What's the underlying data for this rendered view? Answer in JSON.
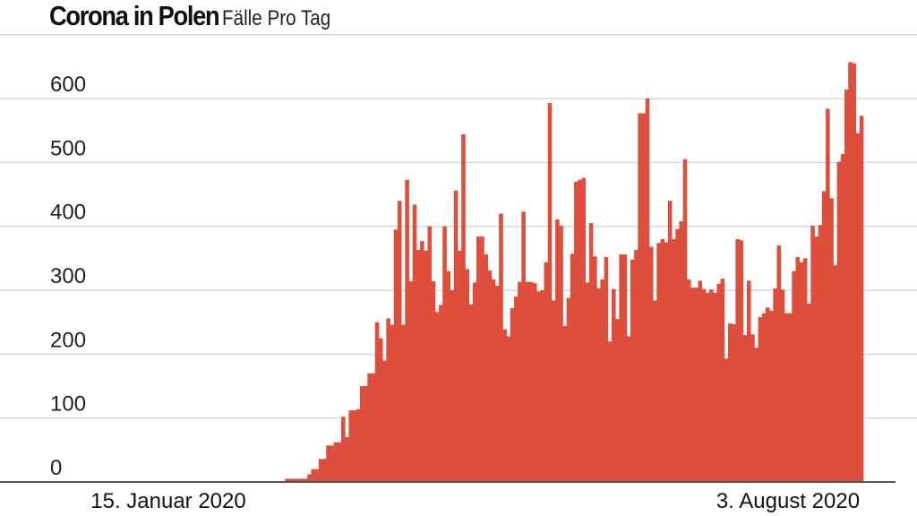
{
  "header": {
    "title": "Corona in Polen",
    "subtitle": "Fälle Pro Tag"
  },
  "colors": {
    "bar": "#dd4e3c",
    "grid": "#d9d9d9",
    "axis": "#555555"
  },
  "chart_data": {
    "type": "bar",
    "title": "Corona in Polen",
    "subtitle": "Fälle Pro Tag",
    "x_tick_labels": [
      "15. Januar 2020",
      "3. August 2020"
    ],
    "y_ticks": [
      0,
      100,
      200,
      300,
      400,
      500,
      600
    ],
    "ylim": [
      0,
      700
    ],
    "grid": true,
    "legend": false,
    "series": [
      {
        "values": [
          0,
          0,
          0,
          0,
          0,
          0,
          0,
          0,
          0,
          0,
          0,
          0,
          0,
          0,
          0,
          0,
          0,
          0,
          0,
          0,
          0,
          0,
          0,
          0,
          0,
          0,
          0,
          0,
          0,
          0,
          0,
          0,
          0,
          0,
          0,
          0,
          0,
          0,
          0,
          0,
          0,
          0,
          0,
          0,
          0,
          0,
          0,
          0,
          0,
          0,
          0,
          0,
          5,
          5,
          5,
          5,
          5,
          5,
          12,
          20,
          20,
          36,
          36,
          57,
          57,
          62,
          62,
          102,
          70,
          112,
          112,
          114,
          150,
          150,
          170,
          170,
          250,
          225,
          190,
          256,
          246,
          395,
          440,
          246,
          473,
          314,
          434,
          363,
          377,
          362,
          400,
          314,
          266,
          277,
          400,
          330,
          300,
          456,
          362,
          544,
          333,
          278,
          312,
          384,
          384,
          356,
          331,
          317,
          307,
          420,
          239,
          228,
          272,
          290,
          313,
          423,
          313,
          313,
          311,
          298,
          300,
          344,
          593,
          284,
          411,
          401,
          244,
          288,
          357,
          470,
          473,
          476,
          312,
          405,
          353,
          303,
          317,
          352,
          220,
          302,
          255,
          356,
          356,
          228,
          348,
          363,
          577,
          577,
          600,
          368,
          284,
          374,
          380,
          375,
          440,
          380,
          396,
          408,
          505,
          317,
          304,
          304,
          315,
          302,
          296,
          301,
          296,
          310,
          318,
          193,
          248,
          247,
          380,
          378,
          230,
          315,
          231,
          210,
          258,
          264,
          273,
          268,
          303,
          370,
          301,
          264,
          264,
          330,
          352,
          344,
          350,
          279,
          401,
          384,
          402,
          455,
          584,
          444,
          339,
          501,
          513,
          614,
          657,
          655,
          546,
          573
        ]
      }
    ]
  }
}
